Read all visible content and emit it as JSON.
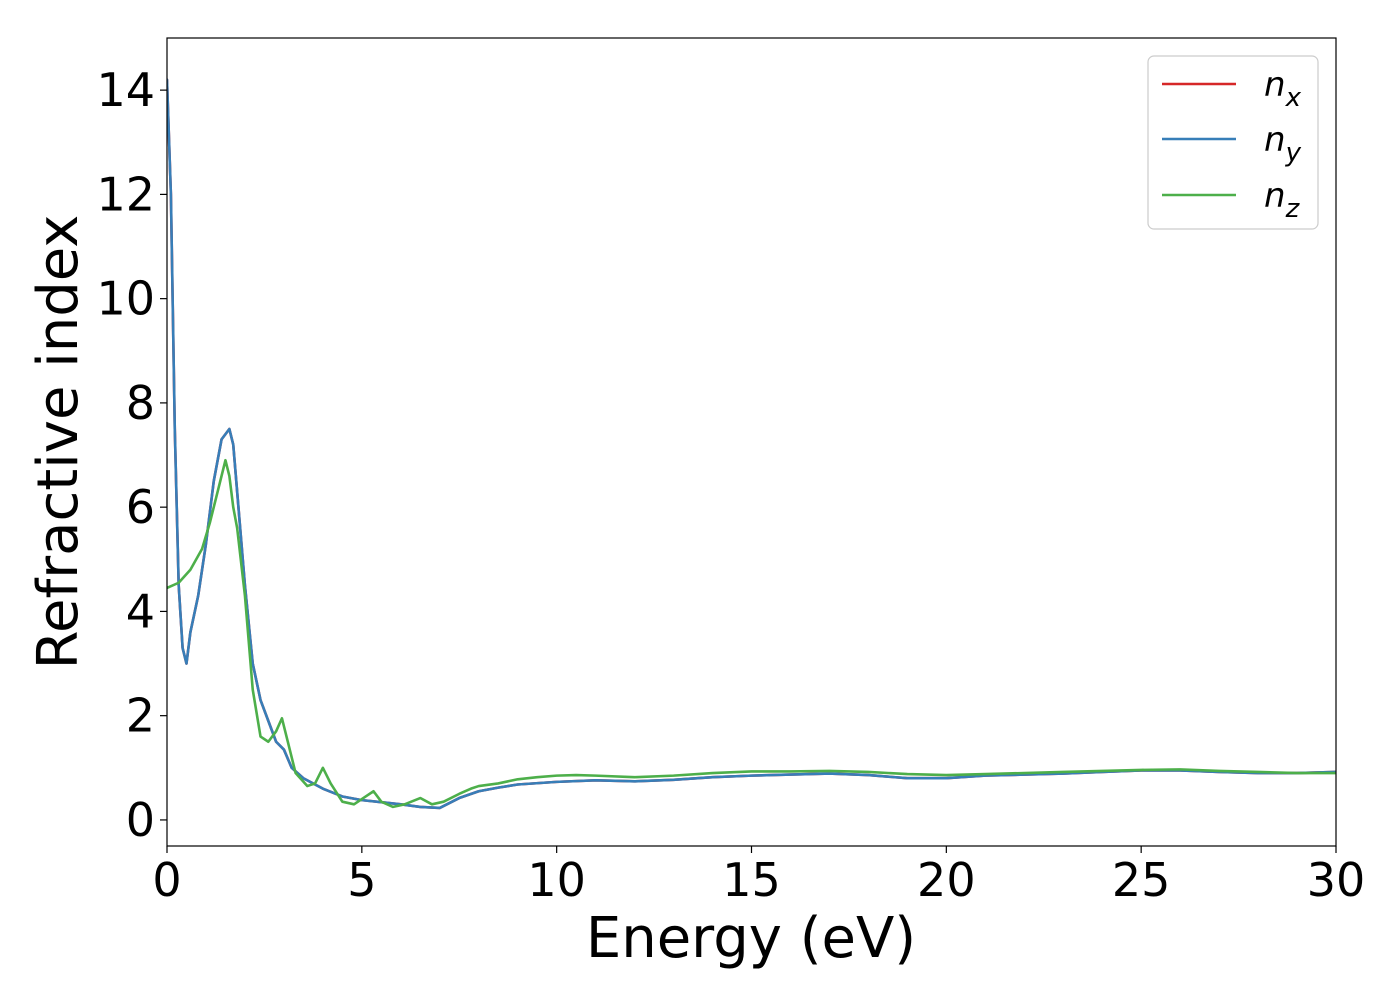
{
  "chart_data": {
    "type": "line",
    "title": "",
    "xlabel": "Energy (eV)",
    "ylabel": "Refractive index",
    "xlim": [
      0,
      30
    ],
    "ylim": [
      -0.5,
      15
    ],
    "xticks": [
      0,
      5,
      10,
      15,
      20,
      25,
      30
    ],
    "yticks": [
      0,
      2,
      4,
      6,
      8,
      10,
      12,
      14
    ],
    "grid": false,
    "legend_position": "top-right",
    "series": [
      {
        "name": "n_x",
        "label_main": "n",
        "label_sub": "x",
        "color": "#d62728",
        "x": [
          0,
          0.1,
          0.2,
          0.3,
          0.4,
          0.5,
          0.6,
          0.8,
          1.0,
          1.2,
          1.4,
          1.6,
          1.7,
          1.8,
          2.0,
          2.2,
          2.4,
          2.6,
          2.8,
          3.0,
          3.2,
          3.5,
          4.0,
          4.5,
          5.0,
          5.5,
          6.0,
          6.5,
          7.0,
          7.5,
          8.0,
          8.5,
          9.0,
          10.0,
          11.0,
          12.0,
          13.0,
          14.0,
          15.0,
          16.0,
          17.0,
          18.0,
          19.0,
          20.0,
          21.0,
          22.0,
          23.0,
          24.0,
          25.0,
          26.0,
          27.0,
          28.0,
          29.0,
          30.0
        ],
        "y": [
          14.2,
          12.0,
          7.5,
          4.5,
          3.3,
          3.0,
          3.6,
          4.3,
          5.3,
          6.5,
          7.3,
          7.5,
          7.2,
          6.3,
          4.5,
          3.0,
          2.3,
          1.9,
          1.5,
          1.35,
          1.0,
          0.8,
          0.6,
          0.45,
          0.38,
          0.34,
          0.3,
          0.25,
          0.23,
          0.42,
          0.55,
          0.62,
          0.68,
          0.73,
          0.76,
          0.74,
          0.77,
          0.82,
          0.85,
          0.87,
          0.89,
          0.86,
          0.8,
          0.8,
          0.85,
          0.87,
          0.89,
          0.92,
          0.95,
          0.95,
          0.92,
          0.9,
          0.9,
          0.92
        ]
      },
      {
        "name": "n_y",
        "label_main": "n",
        "label_sub": "y",
        "color": "#377eb8",
        "x": [
          0,
          0.1,
          0.2,
          0.3,
          0.4,
          0.5,
          0.6,
          0.8,
          1.0,
          1.2,
          1.4,
          1.6,
          1.7,
          1.8,
          2.0,
          2.2,
          2.4,
          2.6,
          2.8,
          3.0,
          3.2,
          3.5,
          4.0,
          4.5,
          5.0,
          5.5,
          6.0,
          6.5,
          7.0,
          7.5,
          8.0,
          8.5,
          9.0,
          10.0,
          11.0,
          12.0,
          13.0,
          14.0,
          15.0,
          16.0,
          17.0,
          18.0,
          19.0,
          20.0,
          21.0,
          22.0,
          23.0,
          24.0,
          25.0,
          26.0,
          27.0,
          28.0,
          29.0,
          30.0
        ],
        "y": [
          14.2,
          12.0,
          7.5,
          4.5,
          3.3,
          3.0,
          3.6,
          4.3,
          5.3,
          6.5,
          7.3,
          7.5,
          7.2,
          6.3,
          4.5,
          3.0,
          2.3,
          1.9,
          1.5,
          1.35,
          1.0,
          0.8,
          0.6,
          0.45,
          0.38,
          0.34,
          0.3,
          0.25,
          0.23,
          0.42,
          0.55,
          0.62,
          0.68,
          0.73,
          0.76,
          0.74,
          0.77,
          0.82,
          0.85,
          0.87,
          0.89,
          0.86,
          0.8,
          0.8,
          0.85,
          0.87,
          0.89,
          0.92,
          0.95,
          0.95,
          0.92,
          0.9,
          0.9,
          0.92
        ]
      },
      {
        "name": "n_z",
        "label_main": "n",
        "label_sub": "z",
        "color": "#4daf4a",
        "x": [
          0,
          0.3,
          0.6,
          0.9,
          1.1,
          1.3,
          1.5,
          1.6,
          1.7,
          1.8,
          2.0,
          2.2,
          2.4,
          2.6,
          2.8,
          2.95,
          3.1,
          3.3,
          3.6,
          3.8,
          4.0,
          4.2,
          4.5,
          4.8,
          5.1,
          5.3,
          5.5,
          5.8,
          6.1,
          6.5,
          6.8,
          7.1,
          7.5,
          7.8,
          8.0,
          8.5,
          9.0,
          9.5,
          10.0,
          10.5,
          11.0,
          12.0,
          13.0,
          14.0,
          15.0,
          16.0,
          17.0,
          18.0,
          19.0,
          20.0,
          21.0,
          22.0,
          23.0,
          24.0,
          25.0,
          26.0,
          27.0,
          28.0,
          29.0,
          30.0
        ],
        "y": [
          4.45,
          4.55,
          4.8,
          5.2,
          5.7,
          6.3,
          6.9,
          6.6,
          6.0,
          5.6,
          4.3,
          2.5,
          1.6,
          1.5,
          1.7,
          1.95,
          1.5,
          0.9,
          0.65,
          0.7,
          1.0,
          0.7,
          0.35,
          0.3,
          0.45,
          0.55,
          0.35,
          0.25,
          0.3,
          0.42,
          0.3,
          0.35,
          0.5,
          0.6,
          0.65,
          0.7,
          0.78,
          0.82,
          0.85,
          0.86,
          0.85,
          0.82,
          0.85,
          0.9,
          0.93,
          0.93,
          0.94,
          0.92,
          0.88,
          0.86,
          0.88,
          0.9,
          0.92,
          0.94,
          0.96,
          0.97,
          0.94,
          0.92,
          0.9,
          0.9
        ]
      }
    ]
  }
}
